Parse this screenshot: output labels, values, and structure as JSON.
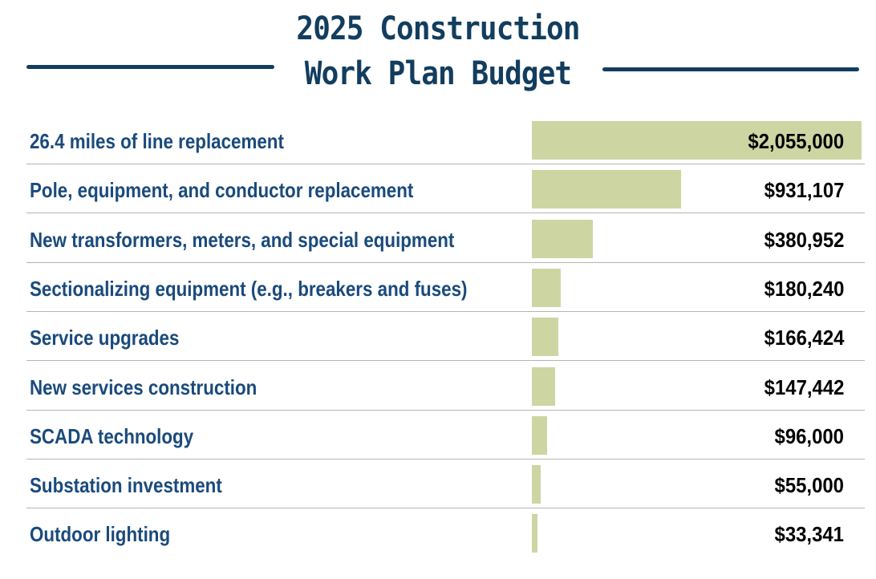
{
  "title_line1": "2025 Construction",
  "title_line2": "Work Plan Budget",
  "colors": {
    "title": "#123d5e",
    "label": "#1a4a7c",
    "bar": "#cdd6a3",
    "value": "#000000"
  },
  "chart_data": {
    "type": "bar",
    "orientation": "horizontal",
    "title": "2025 Construction Work Plan Budget",
    "categories": [
      "26.4 miles of line replacement",
      "Pole, equipment, and conductor replacement",
      "New transformers, meters, and special equipment",
      "Sectionalizing equipment (e.g., breakers and fuses)",
      "Service upgrades",
      "New services construction",
      "SCADA technology",
      "Substation investment",
      "Outdoor lighting"
    ],
    "values": [
      2055000,
      931107,
      380952,
      180240,
      166424,
      147442,
      96000,
      55000,
      33341
    ],
    "value_labels": [
      "$2,055,000",
      "$931,107",
      "$380,952",
      "$180,240",
      "$166,424",
      "$147,442",
      "$96,000",
      "$55,000",
      "$33,341"
    ],
    "xlim": [
      0,
      2055000
    ],
    "grid": false,
    "legend": "none"
  }
}
